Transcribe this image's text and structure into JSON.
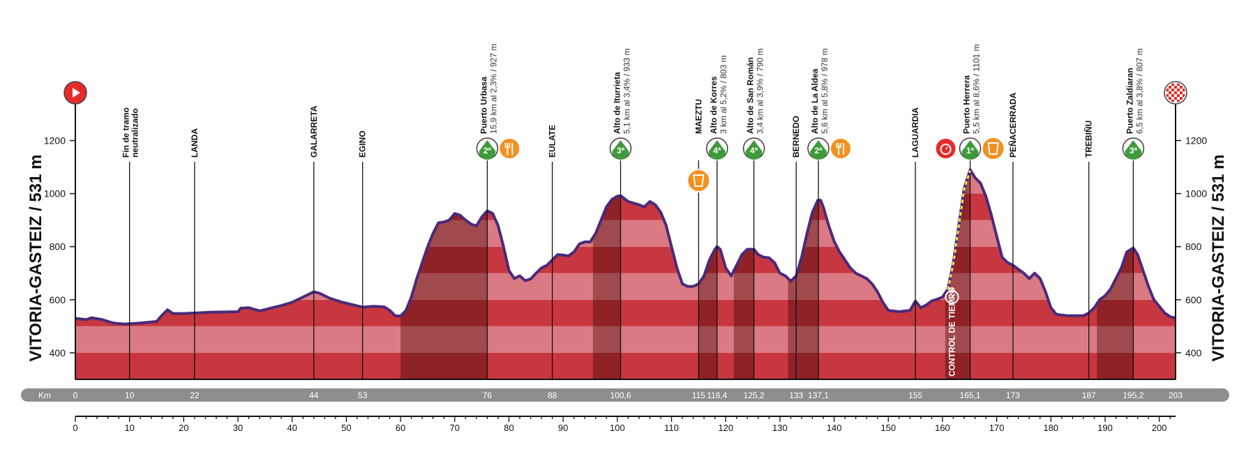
{
  "chart_data": {
    "type": "area",
    "side_labels": {
      "left": "VITORIA-GASTEIZ / 531 m",
      "right": "VITORIA-GASTEIZ / 531 m"
    },
    "y_axis": {
      "ticks": [
        400,
        600,
        800,
        1000,
        1200
      ],
      "ylim": [
        300,
        1380
      ]
    },
    "x_axis": {
      "ticks": [
        0,
        10,
        20,
        30,
        40,
        50,
        60,
        70,
        80,
        90,
        100,
        110,
        120,
        130,
        140,
        150,
        160,
        170,
        180,
        190,
        200
      ],
      "xlim": [
        0,
        203
      ]
    },
    "km_bar": {
      "label": "Km",
      "marks": [
        {
          "km": 0,
          "label": "0"
        },
        {
          "km": 10,
          "label": "10"
        },
        {
          "km": 22,
          "label": "22"
        },
        {
          "km": 44,
          "label": "44"
        },
        {
          "km": 53,
          "label": "53"
        },
        {
          "km": 76,
          "label": "76"
        },
        {
          "km": 88,
          "label": "88"
        },
        {
          "km": 100.6,
          "label": "100,6"
        },
        {
          "km": 115,
          "label": "115"
        },
        {
          "km": 118.4,
          "label": "118,4"
        },
        {
          "km": 125.2,
          "label": "125,2"
        },
        {
          "km": 133,
          "label": "133"
        },
        {
          "km": 137.1,
          "label": "137,1"
        },
        {
          "km": 155,
          "label": "155"
        },
        {
          "km": 165.1,
          "label": "165,1"
        },
        {
          "km": 173,
          "label": "173"
        },
        {
          "km": 187,
          "label": "187"
        },
        {
          "km": 195.2,
          "label": "195,2"
        },
        {
          "km": 203,
          "label": "203"
        }
      ]
    },
    "profile": [
      [
        0,
        530
      ],
      [
        2,
        525
      ],
      [
        3,
        532
      ],
      [
        5,
        525
      ],
      [
        7,
        512
      ],
      [
        9,
        508
      ],
      [
        12,
        512
      ],
      [
        15,
        518
      ],
      [
        16,
        542
      ],
      [
        17,
        562
      ],
      [
        18,
        548
      ],
      [
        20,
        548
      ],
      [
        25,
        553
      ],
      [
        30,
        555
      ],
      [
        30.5,
        568
      ],
      [
        32,
        570
      ],
      [
        34,
        558
      ],
      [
        36,
        568
      ],
      [
        38,
        578
      ],
      [
        40,
        590
      ],
      [
        42,
        610
      ],
      [
        44,
        630
      ],
      [
        45,
        625
      ],
      [
        47,
        605
      ],
      [
        49,
        592
      ],
      [
        51,
        582
      ],
      [
        53,
        572
      ],
      [
        55,
        575
      ],
      [
        57,
        573
      ],
      [
        58,
        560
      ],
      [
        59,
        540
      ],
      [
        60,
        538
      ],
      [
        61,
        560
      ],
      [
        62,
        610
      ],
      [
        63,
        680
      ],
      [
        64,
        740
      ],
      [
        65,
        800
      ],
      [
        66,
        850
      ],
      [
        67,
        890
      ],
      [
        68,
        893
      ],
      [
        69,
        900
      ],
      [
        70,
        925
      ],
      [
        71,
        918
      ],
      [
        72,
        900
      ],
      [
        73,
        885
      ],
      [
        74,
        878
      ],
      [
        75,
        912
      ],
      [
        76,
        935
      ],
      [
        77,
        925
      ],
      [
        78,
        880
      ],
      [
        79,
        800
      ],
      [
        80,
        710
      ],
      [
        81,
        680
      ],
      [
        82,
        690
      ],
      [
        83,
        672
      ],
      [
        84,
        678
      ],
      [
        85,
        700
      ],
      [
        86,
        720
      ],
      [
        87,
        730
      ],
      [
        88,
        750
      ],
      [
        89,
        770
      ],
      [
        90,
        768
      ],
      [
        91,
        765
      ],
      [
        92,
        780
      ],
      [
        93,
        810
      ],
      [
        94,
        818
      ],
      [
        95,
        818
      ],
      [
        96,
        850
      ],
      [
        97,
        900
      ],
      [
        98,
        950
      ],
      [
        99,
        978
      ],
      [
        100,
        990
      ],
      [
        100.6,
        992
      ],
      [
        102,
        970
      ],
      [
        104,
        958
      ],
      [
        105,
        950
      ],
      [
        106,
        970
      ],
      [
        107,
        958
      ],
      [
        108,
        930
      ],
      [
        109,
        880
      ],
      [
        110,
        800
      ],
      [
        111,
        720
      ],
      [
        112,
        660
      ],
      [
        113,
        650
      ],
      [
        114,
        650
      ],
      [
        115,
        660
      ],
      [
        116,
        690
      ],
      [
        117,
        750
      ],
      [
        118,
        790
      ],
      [
        118.4,
        800
      ],
      [
        119,
        790
      ],
      [
        120,
        720
      ],
      [
        121,
        690
      ],
      [
        122,
        730
      ],
      [
        123,
        770
      ],
      [
        124,
        790
      ],
      [
        125.2,
        790
      ],
      [
        126,
        770
      ],
      [
        127,
        760
      ],
      [
        128,
        758
      ],
      [
        129,
        740
      ],
      [
        130,
        700
      ],
      [
        131,
        690
      ],
      [
        132,
        670
      ],
      [
        133,
        690
      ],
      [
        134,
        760
      ],
      [
        135,
        850
      ],
      [
        136,
        930
      ],
      [
        137,
        975
      ],
      [
        137.5,
        975
      ],
      [
        138,
        950
      ],
      [
        139,
        880
      ],
      [
        140,
        820
      ],
      [
        141,
        780
      ],
      [
        142,
        750
      ],
      [
        143,
        720
      ],
      [
        144,
        700
      ],
      [
        145,
        690
      ],
      [
        146,
        680
      ],
      [
        147,
        660
      ],
      [
        148,
        630
      ],
      [
        149,
        590
      ],
      [
        150,
        560
      ],
      [
        152,
        555
      ],
      [
        154,
        560
      ],
      [
        155,
        595
      ],
      [
        156,
        570
      ],
      [
        157,
        580
      ],
      [
        158,
        595
      ],
      [
        159,
        602
      ],
      [
        160,
        610
      ],
      [
        161,
        640
      ],
      [
        162,
        740
      ],
      [
        163,
        880
      ],
      [
        164,
        1020
      ],
      [
        165.1,
        1090
      ],
      [
        166,
        1060
      ],
      [
        167,
        1040
      ],
      [
        168,
        990
      ],
      [
        169,
        920
      ],
      [
        170,
        840
      ],
      [
        171,
        760
      ],
      [
        172,
        740
      ],
      [
        173,
        730
      ],
      [
        174,
        715
      ],
      [
        175,
        700
      ],
      [
        176,
        680
      ],
      [
        177,
        700
      ],
      [
        178,
        680
      ],
      [
        179,
        630
      ],
      [
        180,
        570
      ],
      [
        181,
        545
      ],
      [
        183,
        540
      ],
      [
        185,
        540
      ],
      [
        186,
        540
      ],
      [
        187,
        550
      ],
      [
        188,
        570
      ],
      [
        189,
        600
      ],
      [
        190,
        615
      ],
      [
        191,
        640
      ],
      [
        192,
        680
      ],
      [
        193,
        720
      ],
      [
        194,
        780
      ],
      [
        195.2,
        795
      ],
      [
        196,
        770
      ],
      [
        197,
        710
      ],
      [
        198,
        650
      ],
      [
        199,
        600
      ],
      [
        200,
        575
      ],
      [
        201,
        550
      ],
      [
        202,
        536
      ],
      [
        203,
        531
      ]
    ],
    "climb_zones": [
      [
        60,
        76
      ],
      [
        95.5,
        100.6
      ],
      [
        115,
        118.4
      ],
      [
        121.5,
        125.2
      ],
      [
        131.5,
        137.1
      ],
      [
        160.5,
        165.1
      ],
      [
        188.5,
        195.2
      ]
    ],
    "time_trial_segment": [
      161,
      165.1
    ],
    "time_control_label": "CONTROL DE TIEMPO",
    "places": [
      {
        "km": 10,
        "name": "Fin de tramo",
        "name2": "neutralizado"
      },
      {
        "km": 22,
        "name": "LANDA"
      },
      {
        "km": 44,
        "name": "GALARRETA"
      },
      {
        "km": 53,
        "name": "EGINO"
      },
      {
        "km": 76,
        "name": "Puerto Urbasa",
        "detail": "15,9 km al 2,3% / 927 m"
      },
      {
        "km": 88,
        "name": "EULATE"
      },
      {
        "km": 100.6,
        "name": "Alto de Iturrieta",
        "detail": "5,1 km al 3,4% / 933 m"
      },
      {
        "km": 115,
        "name": "MAEZTU"
      },
      {
        "km": 118.4,
        "name": "Alto de Korres",
        "detail": "3 km al 5,2% / 803 m"
      },
      {
        "km": 125.2,
        "name": "Alto de San Román",
        "detail": "3,4 km al 3,9% / 790 m"
      },
      {
        "km": 133,
        "name": "BERNEDO"
      },
      {
        "km": 137.1,
        "name": "Alto de La Aldea",
        "detail": "5,6 km al 5,8% / 978 m"
      },
      {
        "km": 155,
        "name": "LAGUARDIA"
      },
      {
        "km": 165.1,
        "name": "Puerto Herrera",
        "detail": "5,5 km al 8,6% / 1101 m"
      },
      {
        "km": 173,
        "name": "PEÑACERRADA"
      },
      {
        "km": 187,
        "name": "TREBIÑU"
      },
      {
        "km": 195.2,
        "name": "Puerto Zaldiaran",
        "detail": "6,5 km al 3,8% / 807 m"
      }
    ],
    "badges": [
      {
        "km": 76,
        "type": "climb",
        "cat": "2ª"
      },
      {
        "km": 76,
        "type": "food"
      },
      {
        "km": 100.6,
        "type": "climb",
        "cat": "3ª"
      },
      {
        "km": 115,
        "type": "drink"
      },
      {
        "km": 118.4,
        "type": "climb",
        "cat": "4ª"
      },
      {
        "km": 125.2,
        "type": "climb",
        "cat": "4ª"
      },
      {
        "km": 137.1,
        "type": "climb",
        "cat": "2ª"
      },
      {
        "km": 137.1,
        "type": "food"
      },
      {
        "km": 165.1,
        "type": "timer"
      },
      {
        "km": 165.1,
        "type": "climb",
        "cat": "1ª"
      },
      {
        "km": 165.1,
        "type": "drink"
      },
      {
        "km": 195.2,
        "type": "climb",
        "cat": "3ª"
      }
    ],
    "start_icon": "play-icon",
    "finish_icon": "checkered-flag-icon",
    "colors": {
      "profile_dark": "#c8373f",
      "profile_light": "#db7a82",
      "climb_dark": "#8e2226",
      "climb_light": "#a04a4d",
      "outline": "#4a2a7a",
      "badge_green": "#3f9a3a",
      "badge_orange": "#f29120",
      "badge_red": "#e52b2b",
      "axis_bar": "#8e8e8e"
    }
  }
}
